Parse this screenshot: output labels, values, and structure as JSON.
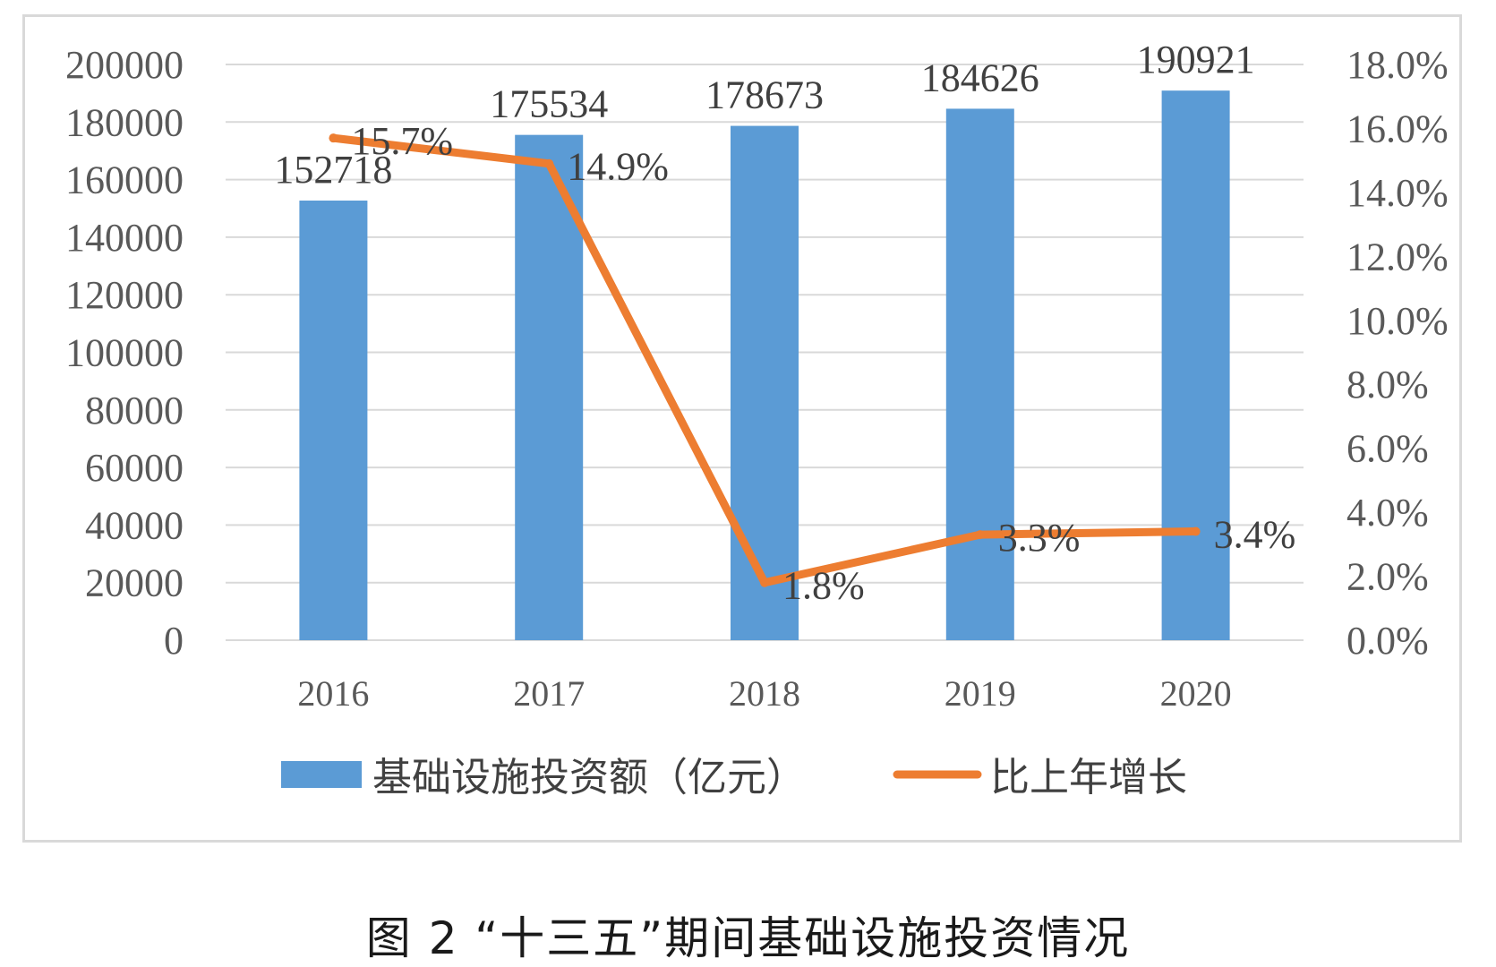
{
  "chart_data": {
    "type": "bar",
    "categories": [
      "2016",
      "2017",
      "2018",
      "2019",
      "2020"
    ],
    "series": [
      {
        "name": "基础设施投资额（亿元）",
        "type": "bar",
        "axis": "left",
        "values": [
          152718,
          175534,
          178673,
          184626,
          190921
        ],
        "labels": [
          "152718",
          "175534",
          "178673",
          "184626",
          "190921"
        ],
        "color": "#5b9bd5"
      },
      {
        "name": "比上年增长",
        "type": "line",
        "axis": "right",
        "values": [
          15.7,
          14.9,
          1.8,
          3.3,
          3.4
        ],
        "labels": [
          "15.7%",
          "14.9%",
          "1.8%",
          "3.3%",
          "3.4%"
        ],
        "color": "#ed7d31"
      }
    ],
    "y_left": {
      "ylim": [
        0,
        200000
      ],
      "ticks": [
        "0",
        "20000",
        "40000",
        "60000",
        "80000",
        "100000",
        "120000",
        "140000",
        "160000",
        "180000",
        "200000"
      ]
    },
    "y_right": {
      "ylim": [
        0,
        18
      ],
      "ticks": [
        "0.0%",
        "2.0%",
        "4.0%",
        "6.0%",
        "8.0%",
        "10.0%",
        "12.0%",
        "14.0%",
        "16.0%",
        "18.0%"
      ]
    },
    "grid": true,
    "legend_position": "bottom"
  },
  "caption": "图 2 “十三五”期间基础设施投资情况",
  "colors": {
    "bar": "#5b9bd5",
    "line": "#ed7d31",
    "grid": "#d9d9d9",
    "axis_text": "#595959"
  }
}
